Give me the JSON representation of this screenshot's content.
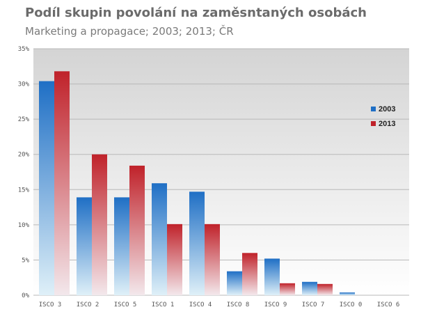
{
  "chart_data": {
    "type": "bar",
    "title": "Podíl skupin povolání na zaměsntaných osobách",
    "subtitle": "Marketing a propagace; 2003; 2013; ČR",
    "categories": [
      "ISCO 3",
      "ISCO 2",
      "ISCO 5",
      "ISCO 1",
      "ISCO 4",
      "ISCO 8",
      "ISCO 9",
      "ISCO 7",
      "ISCO 0",
      "ISCO 6"
    ],
    "series": [
      {
        "name": "2003",
        "color": "#1f6fc5",
        "values": [
          30.4,
          13.9,
          13.9,
          15.9,
          14.7,
          3.4,
          5.2,
          1.9,
          0.4,
          0.0
        ]
      },
      {
        "name": "2013",
        "color": "#c0222a",
        "values": [
          31.8,
          20.0,
          18.4,
          10.1,
          10.1,
          6.0,
          1.7,
          1.6,
          0.0,
          0.0
        ]
      }
    ],
    "ylim": [
      0,
      35
    ],
    "yticks": [
      "0%",
      "5%",
      "10%",
      "15%",
      "20%",
      "25%",
      "30%",
      "35%"
    ],
    "ytick_values": [
      0,
      5,
      10,
      15,
      20,
      25,
      30,
      35
    ],
    "grid": true,
    "legend": "right"
  }
}
